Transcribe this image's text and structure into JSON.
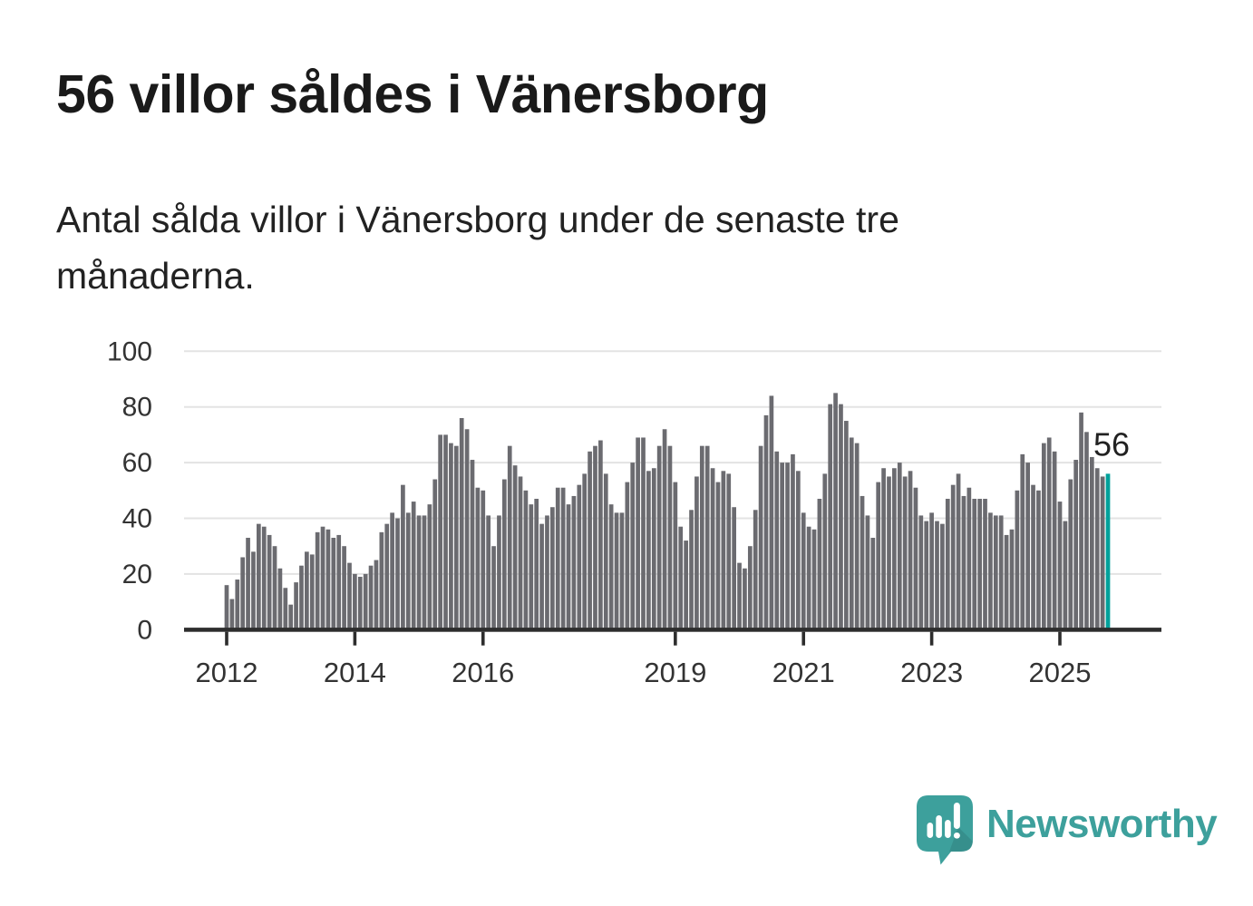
{
  "header": {
    "title": "56 villor såldes i Vänersborg",
    "subtitle": "Antal sålda villor i Vänersborg under de senaste tre månaderna."
  },
  "annotation": {
    "value_label": "56"
  },
  "logo": {
    "text": "Newsworthy",
    "icon": "speech-bubble-with-bar-chart-and-exclamation"
  },
  "colors": {
    "bar": "#6b6b70",
    "highlight_bar": "#00a19b",
    "grid": "#e3e3e3",
    "axis": "#2d2d2d",
    "axis_text": "#333333",
    "annotation_text": "#222222",
    "annotation_halo": "#ffffff",
    "title_text": "#1a1a1a",
    "logo_teal": "#3da09c"
  },
  "chart_data": {
    "type": "bar",
    "title": "56 villor såldes i Vänersborg",
    "subtitle": "Antal sålda villor i Vänersborg under de senaste tre månaderna.",
    "xlabel": "",
    "ylabel": "",
    "frequency": "monthly",
    "start_period": "2012-01",
    "end_period": "2025-10",
    "start_year": 2012,
    "ylim": [
      0,
      100
    ],
    "y_ticks": [
      0,
      20,
      40,
      60,
      80,
      100
    ],
    "x_tick_years": [
      2012,
      2014,
      2016,
      2019,
      2021,
      2023,
      2025
    ],
    "x_tick_labels": [
      "2012",
      "2014",
      "2016",
      "2019",
      "2021",
      "2023",
      "2025"
    ],
    "grid": "horizontal",
    "legend_position": "none",
    "highlight_last": true,
    "highlight_last_value": 56,
    "values": [
      16,
      11,
      18,
      26,
      33,
      28,
      38,
      37,
      34,
      30,
      22,
      15,
      9,
      17,
      23,
      28,
      27,
      35,
      37,
      36,
      33,
      34,
      30,
      24,
      20,
      19,
      20,
      23,
      25,
      35,
      38,
      42,
      40,
      52,
      42,
      46,
      41,
      41,
      45,
      54,
      70,
      70,
      67,
      66,
      76,
      72,
      61,
      51,
      50,
      41,
      30,
      41,
      54,
      66,
      59,
      55,
      50,
      45,
      47,
      38,
      41,
      44,
      51,
      51,
      45,
      48,
      52,
      56,
      64,
      66,
      68,
      56,
      45,
      42,
      42,
      53,
      60,
      69,
      69,
      57,
      58,
      66,
      72,
      66,
      53,
      37,
      32,
      43,
      55,
      66,
      66,
      58,
      53,
      57,
      56,
      44,
      24,
      22,
      30,
      43,
      66,
      77,
      84,
      64,
      60,
      60,
      63,
      57,
      42,
      37,
      36,
      47,
      56,
      81,
      85,
      81,
      75,
      69,
      67,
      48,
      41,
      33,
      53,
      58,
      55,
      58,
      60,
      55,
      57,
      51,
      41,
      39,
      42,
      39,
      38,
      47,
      52,
      56,
      48,
      51,
      47,
      47,
      47,
      42,
      41,
      41,
      34,
      36,
      50,
      63,
      60,
      52,
      50,
      67,
      69,
      64,
      46,
      39,
      54,
      61,
      78,
      71,
      62,
      58,
      55,
      56
    ]
  }
}
